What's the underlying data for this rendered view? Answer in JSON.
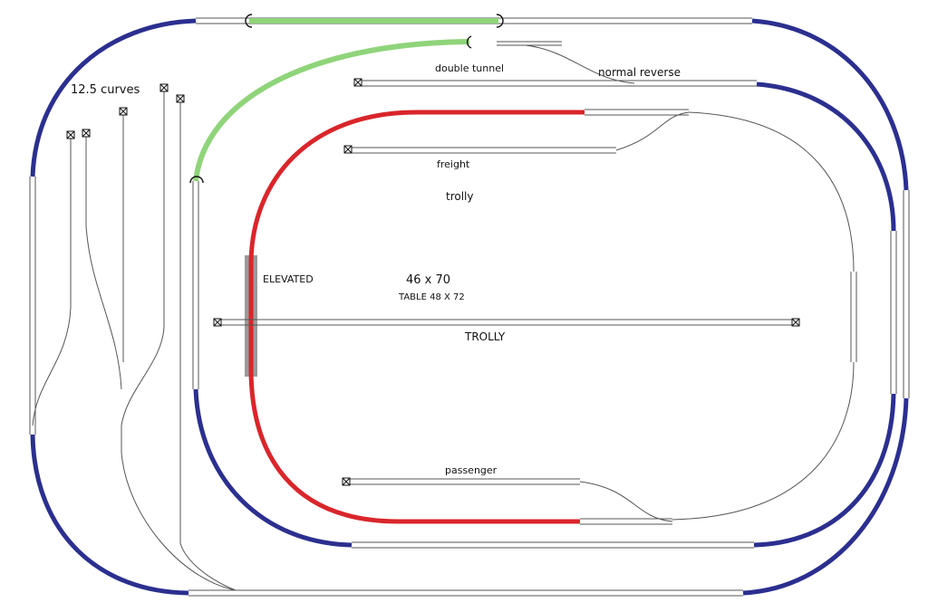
{
  "labels": {
    "curves": "12.5 curves",
    "double_tunnel": "double tunnel",
    "normal_reverse": "normal reverse",
    "freight": "freight",
    "trolly_upper": "trolly",
    "elevated": "ELEVATED",
    "size": "46 x 70",
    "table": "TABLE 48 X 72",
    "trolly_lower": "TROLLY",
    "passenger": "passenger"
  },
  "colors": {
    "curve_blue": "#2b2f8f",
    "elevated_red": "#d9262b",
    "tunnel_green": "#8fd47a",
    "track_rail": "#555555",
    "elevated_pier": "#9a9a9a"
  }
}
